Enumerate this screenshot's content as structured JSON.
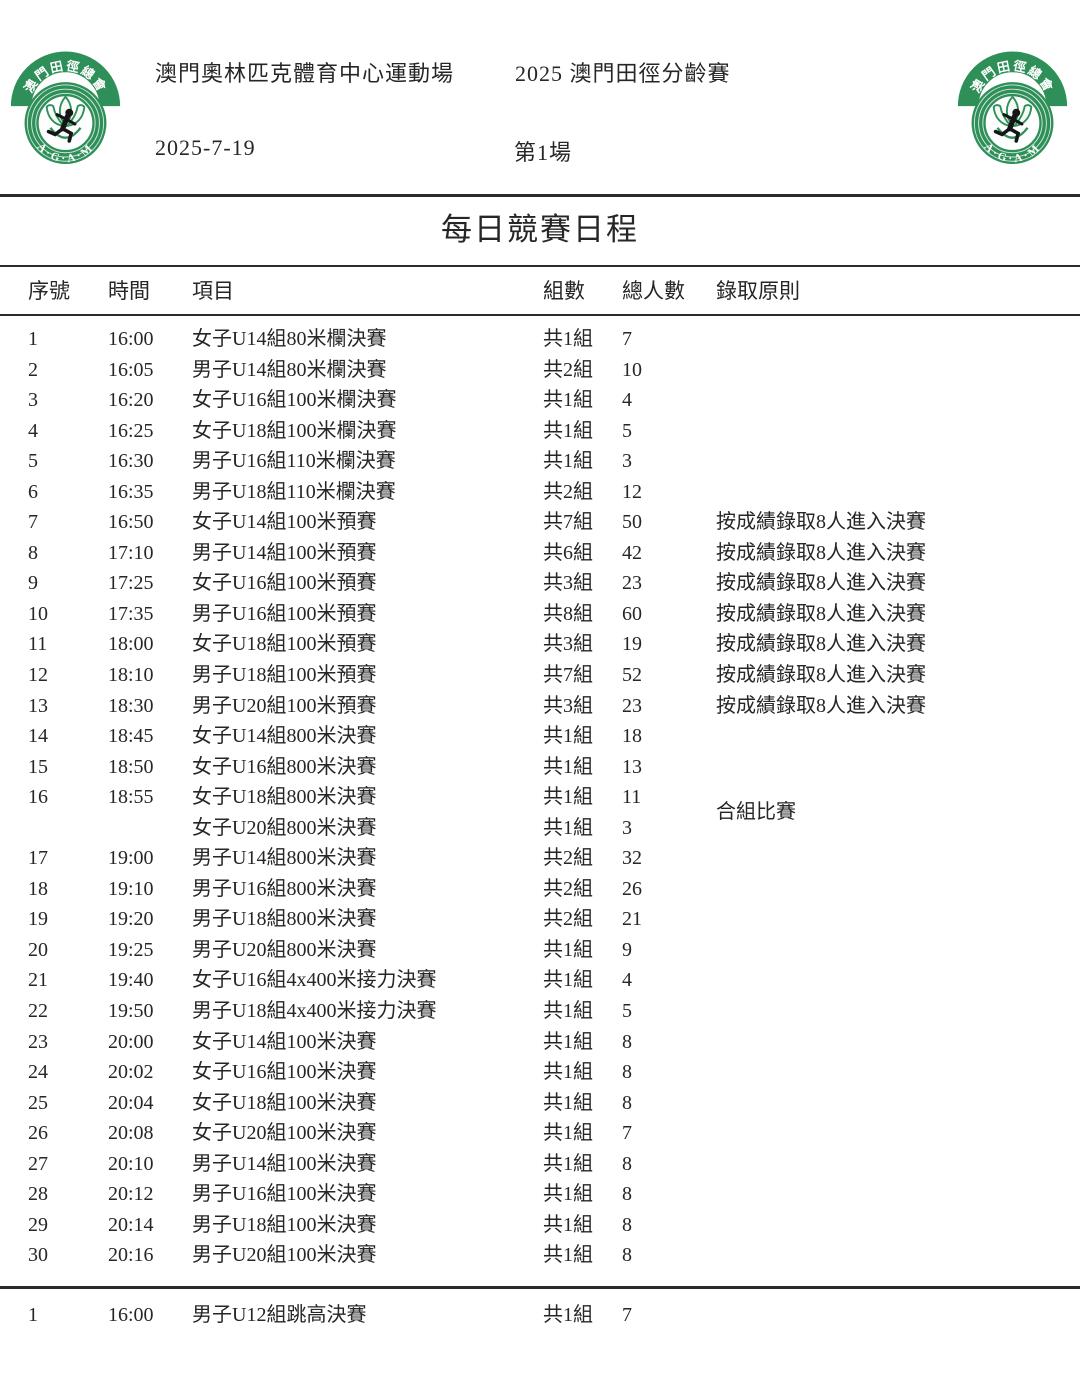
{
  "header": {
    "venue": "澳門奧林匹克體育中心運動場",
    "competition": "2025 澳門田徑分齡賽",
    "date": "2025-7-19",
    "session": "第1場"
  },
  "logo": {
    "name": "澳門田徑總會",
    "acronym": "A·G·A·M",
    "green": "#2e8f58"
  },
  "title": "每日競賽日程",
  "table": {
    "columns": [
      "序號",
      "時間",
      "項目",
      "組數",
      "總人數",
      "錄取原則"
    ],
    "merged_note": "合組比賽",
    "rows": [
      {
        "no": "1",
        "time": "16:00",
        "event": "女子U14組80米欄決賽",
        "groups": "共1組",
        "total": "7",
        "rule": ""
      },
      {
        "no": "2",
        "time": "16:05",
        "event": "男子U14組80米欄決賽",
        "groups": "共2組",
        "total": "10",
        "rule": ""
      },
      {
        "no": "3",
        "time": "16:20",
        "event": "女子U16組100米欄決賽",
        "groups": "共1組",
        "total": "4",
        "rule": ""
      },
      {
        "no": "4",
        "time": "16:25",
        "event": "女子U18組100米欄決賽",
        "groups": "共1組",
        "total": "5",
        "rule": ""
      },
      {
        "no": "5",
        "time": "16:30",
        "event": "男子U16組110米欄決賽",
        "grogroups": "",
        "groups": "共1組",
        "total": "3",
        "rule": ""
      },
      {
        "no": "6",
        "time": "16:35",
        "event": "男子U18組110米欄決賽",
        "groups": "共2組",
        "total": "12",
        "rule": ""
      },
      {
        "no": "7",
        "time": "16:50",
        "event": "女子U14組100米預賽",
        "groups": "共7組",
        "total": "50",
        "rule": "按成績錄取8人進入決賽"
      },
      {
        "no": "8",
        "time": "17:10",
        "event": "男子U14組100米預賽",
        "groups": "共6組",
        "total": "42",
        "rule": "按成績錄取8人進入決賽"
      },
      {
        "no": "9",
        "time": "17:25",
        "event": "女子U16組100米預賽",
        "groups": "共3組",
        "total": "23",
        "rule": "按成績錄取8人進入決賽"
      },
      {
        "no": "10",
        "time": "17:35",
        "event": "男子U16組100米預賽",
        "groups": "共8組",
        "total": "60",
        "rule": "按成績錄取8人進入決賽"
      },
      {
        "no": "11",
        "time": "18:00",
        "event": "女子U18組100米預賽",
        "groups": "共3組",
        "total": "19",
        "rule": "按成績錄取8人進入決賽"
      },
      {
        "no": "12",
        "time": "18:10",
        "event": "男子U18組100米預賽",
        "groups": "共7組",
        "total": "52",
        "rule": "按成績錄取8人進入決賽"
      },
      {
        "no": "13",
        "time": "18:30",
        "event": "男子U20組100米預賽",
        "groups": "共3組",
        "total": "23",
        "rule": "按成績錄取8人進入決賽"
      },
      {
        "no": "14",
        "time": "18:45",
        "event": "女子U14組800米決賽",
        "groups": "共1組",
        "total": "18",
        "rule": ""
      },
      {
        "no": "15",
        "time": "18:50",
        "event": "女子U16組800米決賽",
        "groups": "共1組",
        "total": "13",
        "rule": ""
      },
      {
        "no": "16",
        "time": "18:55",
        "event": "女子U18組800米決賽",
        "groups": "共1組",
        "total": "11",
        "rule": ""
      },
      {
        "no": "",
        "time": "",
        "event": "女子U20組800米決賽",
        "groups": "共1組",
        "total": "3",
        "rule": ""
      },
      {
        "no": "17",
        "time": "19:00",
        "event": "男子U14組800米決賽",
        "groups": "共2組",
        "total": "32",
        "rule": ""
      },
      {
        "no": "18",
        "time": "19:10",
        "event": "男子U16組800米決賽",
        "groups": "共2組",
        "total": "26",
        "rule": ""
      },
      {
        "no": "19",
        "time": "19:20",
        "event": "男子U18組800米決賽",
        "groups": "共2組",
        "total": "21",
        "rule": ""
      },
      {
        "no": "20",
        "time": "19:25",
        "event": "男子U20組800米決賽",
        "groups": "共1組",
        "total": "9",
        "rule": ""
      },
      {
        "no": "21",
        "time": "19:40",
        "event": "女子U16組4x400米接力決賽",
        "groups": "共1組",
        "total": "4",
        "rule": ""
      },
      {
        "no": "22",
        "time": "19:50",
        "event": "男子U18組4x400米接力決賽",
        "groups": "共1組",
        "total": "5",
        "rule": ""
      },
      {
        "no": "23",
        "time": "20:00",
        "event": "女子U14組100米決賽",
        "groups": "共1組",
        "total": "8",
        "rule": ""
      },
      {
        "no": "24",
        "time": "20:02",
        "event": "女子U16組100米決賽",
        "groups": "共1組",
        "total": "8",
        "rule": ""
      },
      {
        "no": "25",
        "time": "20:04",
        "event": "女子U18組100米決賽",
        "groups": "共1組",
        "total": "8",
        "rule": ""
      },
      {
        "no": "26",
        "time": "20:08",
        "event": "女子U20組100米決賽",
        "groups": "共1組",
        "total": "7",
        "rule": ""
      },
      {
        "no": "27",
        "time": "20:10",
        "event": "男子U14組100米決賽",
        "groups": "共1組",
        "total": "8",
        "rule": ""
      },
      {
        "no": "28",
        "time": "20:12",
        "event": "男子U16組100米決賽",
        "groups": "共1組",
        "total": "8",
        "rule": ""
      },
      {
        "no": "29",
        "time": "20:14",
        "event": "男子U18組100米決賽",
        "groups": "共1組",
        "total": "8",
        "rule": ""
      },
      {
        "no": "30",
        "time": "20:16",
        "event": "男子U20組100米決賽",
        "groups": "共1組",
        "total": "8",
        "rule": ""
      }
    ],
    "extra_rows": [
      {
        "no": "1",
        "time": "16:00",
        "event": "男子U12組跳高決賽",
        "groups": "共1組",
        "total": "7",
        "rule": ""
      }
    ]
  }
}
